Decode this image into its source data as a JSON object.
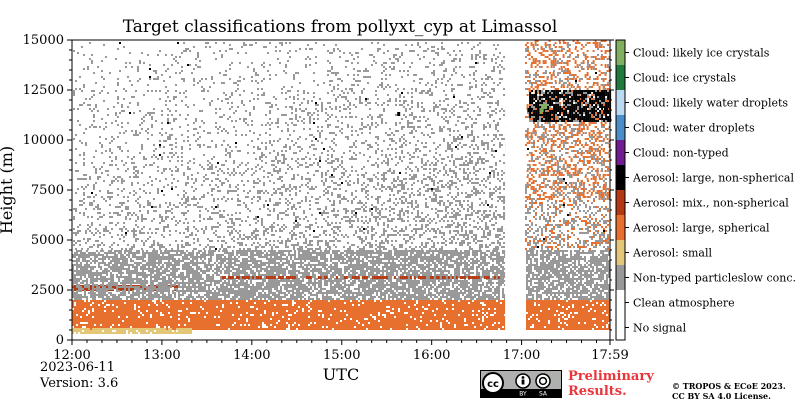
{
  "chart_data": {
    "type": "heatmap",
    "title": "Target classifications from pollyxt_cyp at Limassol",
    "xlabel": "UTC",
    "ylabel": "Height (m)",
    "x_ticks": [
      "12:00",
      "13:00",
      "14:00",
      "15:00",
      "16:00",
      "17:00",
      "17:59"
    ],
    "x_range": [
      "12:00",
      "17:59"
    ],
    "y_ticks": [
      0,
      2500,
      5000,
      7500,
      10000,
      12500,
      15000
    ],
    "ylim": [
      0,
      15000
    ],
    "data_gap": [
      "16:49",
      "17:02"
    ],
    "classes": [
      {
        "label": "No signal",
        "color": "#ffffff"
      },
      {
        "label": "Clean atmosphere",
        "color": "#ffffff"
      },
      {
        "label": "Non-typed particleslow conc.",
        "color": "#999999"
      },
      {
        "label": "Aerosol: small",
        "color": "#e3c777"
      },
      {
        "label": "Aerosol: large, spherical",
        "color": "#e8702f"
      },
      {
        "label": "Aerosol: mix., non-spherical",
        "color": "#b33913"
      },
      {
        "label": "Aerosol: large, non-spherical",
        "color": "#000000"
      },
      {
        "label": "Cloud: non-typed",
        "color": "#6e1c8f"
      },
      {
        "label": "Cloud: water droplets",
        "color": "#4a8dc8"
      },
      {
        "label": "Cloud: likely water droplets",
        "color": "#bcd9f2"
      },
      {
        "label": "Cloud: ice crystals",
        "color": "#1f7a3c"
      },
      {
        "label": "Cloud: likely ice crystals",
        "color": "#80b060"
      }
    ],
    "layers": [
      {
        "class": "Aerosol: large, spherical",
        "from_time": "12:00",
        "to_time": "17:59",
        "height_range": [
          500,
          2000
        ],
        "note": "dense boundary layer"
      },
      {
        "class": "Aerosol: mix., non-spherical",
        "from_time": "12:00",
        "to_time": "13:10",
        "height_range": [
          2450,
          2750
        ]
      },
      {
        "class": "Non-typed particleslow conc.",
        "from_time": "12:00",
        "to_time": "17:59",
        "height_range": [
          2000,
          4500
        ]
      },
      {
        "class": "Aerosol: small",
        "from_time": "12:00",
        "to_time": "13:20",
        "height_range": [
          300,
          600
        ]
      },
      {
        "class": "Aerosol: large, spherical",
        "from_time": "17:02",
        "to_time": "17:59",
        "height_range": [
          7000,
          15000
        ],
        "note": "sparse"
      },
      {
        "class": "Aerosol: large, non-spherical",
        "from_time": "17:05",
        "to_time": "17:59",
        "height_range": [
          11000,
          12500
        ]
      },
      {
        "class": "Cloud: likely ice crystals",
        "from_time": "17:12",
        "to_time": "17:14",
        "height_range": [
          11300,
          11800
        ]
      }
    ],
    "colorbar_position": "right",
    "grid": false
  },
  "footer": {
    "date": "2023-06-11",
    "version": "Version: 3.6",
    "preliminary_line1": "Preliminary",
    "preliminary_line2": "Results.",
    "copyright_line1": "© TROPOS & ECoE 2023.",
    "copyright_line2": "CC BY SA 4.0 License.",
    "license_badge": {
      "by": "BY",
      "sa": "SA"
    }
  }
}
